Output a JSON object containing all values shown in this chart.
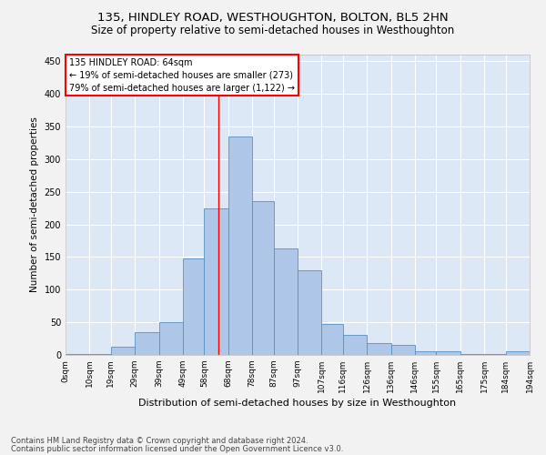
{
  "title1": "135, HINDLEY ROAD, WESTHOUGHTON, BOLTON, BL5 2HN",
  "title2": "Size of property relative to semi-detached houses in Westhoughton",
  "xlabel": "Distribution of semi-detached houses by size in Westhoughton",
  "ylabel": "Number of semi-detached properties",
  "footnote1": "Contains HM Land Registry data © Crown copyright and database right 2024.",
  "footnote2": "Contains public sector information licensed under the Open Government Licence v3.0.",
  "annotation_title": "135 HINDLEY ROAD: 64sqm",
  "annotation_line1": "← 19% of semi-detached houses are smaller (273)",
  "annotation_line2": "79% of semi-detached houses are larger (1,122) →",
  "bar_left_edges": [
    0,
    10,
    19,
    29,
    39,
    49,
    58,
    68,
    78,
    87,
    97,
    107,
    116,
    126,
    136,
    146,
    155,
    165,
    175,
    184
  ],
  "bar_widths": [
    10,
    9,
    10,
    10,
    10,
    9,
    10,
    10,
    9,
    10,
    10,
    9,
    10,
    10,
    10,
    9,
    10,
    10,
    9,
    10
  ],
  "bar_heights": [
    2,
    2,
    12,
    35,
    50,
    148,
    225,
    335,
    235,
    163,
    130,
    48,
    30,
    18,
    15,
    6,
    6,
    2,
    2,
    5
  ],
  "bar_color": "#aec6e8",
  "bar_edge_color": "#5a8fc0",
  "bg_color": "#dce8f5",
  "grid_color": "#ffffff",
  "fig_bg_color": "#f2f2f2",
  "red_line_x": 64,
  "ylim": [
    0,
    460
  ],
  "xlim": [
    0,
    194
  ],
  "yticks": [
    0,
    50,
    100,
    150,
    200,
    250,
    300,
    350,
    400,
    450
  ],
  "xtick_labels": [
    "0sqm",
    "10sqm",
    "19sqm",
    "29sqm",
    "39sqm",
    "49sqm",
    "58sqm",
    "68sqm",
    "78sqm",
    "87sqm",
    "97sqm",
    "107sqm",
    "116sqm",
    "126sqm",
    "136sqm",
    "146sqm",
    "155sqm",
    "165sqm",
    "175sqm",
    "184sqm",
    "194sqm"
  ],
  "xtick_positions": [
    0,
    10,
    19,
    29,
    39,
    49,
    58,
    68,
    78,
    87,
    97,
    107,
    116,
    126,
    136,
    146,
    155,
    165,
    175,
    184,
    194
  ]
}
